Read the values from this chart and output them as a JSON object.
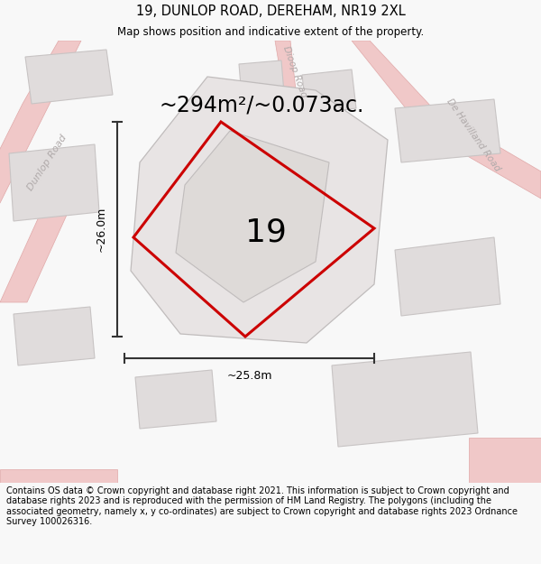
{
  "title": "19, DUNLOP ROAD, DEREHAM, NR19 2XL",
  "subtitle": "Map shows position and indicative extent of the property.",
  "area_label": "~294m²/~0.073ac.",
  "number_label": "19",
  "dim_width": "~25.8m",
  "dim_height": "~26.0m",
  "footer": "Contains OS data © Crown copyright and database right 2021. This information is subject to Crown copyright and database rights 2023 and is reproduced with the permission of HM Land Registry. The polygons (including the associated geometry, namely x, y co-ordinates) are subject to Crown copyright and database rights 2023 Ordnance Survey 100026316.",
  "bg_color": "#f2f0f0",
  "title_bg": "#f8f8f8",
  "footer_bg": "#f8f8f8",
  "road_fill": "#f0c8c8",
  "road_edge": "#e0a8a8",
  "building_fill": "#e0dcdc",
  "building_edge": "#c8c4c4",
  "plot_fill": "#e8e4e4",
  "plot_edge": "#c0bcbc",
  "inner_fill": "#dedad8",
  "inner_edge": "#c0bcbc",
  "red_color": "#cc0000",
  "dim_color": "#333333",
  "road_label_color": "#b0aaaa",
  "title_fontsize": 10.5,
  "subtitle_fontsize": 8.5,
  "area_fontsize": 17,
  "number_fontsize": 26,
  "dim_fontsize": 9,
  "footer_fontsize": 7,
  "road_label_fontsize": 8
}
